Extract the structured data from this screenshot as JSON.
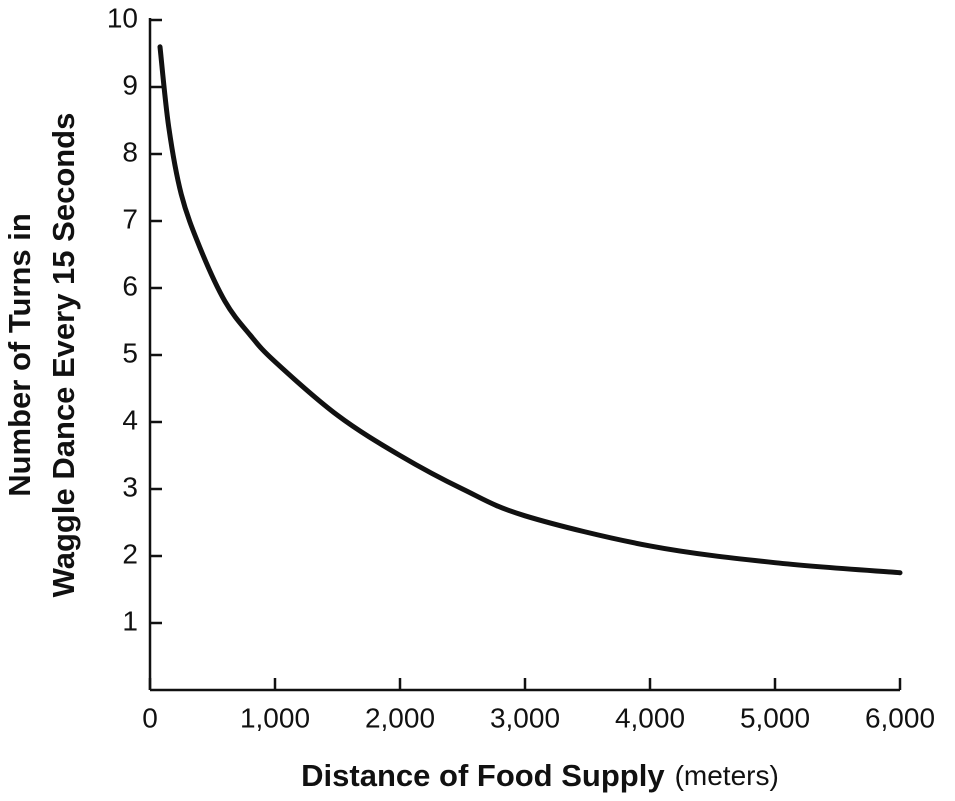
{
  "chart_data": {
    "type": "line",
    "ylabel": [
      "Number of Turns in",
      "Waggle Dance Every 15 Seconds"
    ],
    "xlabel": "Distance of Food Supply",
    "xlabel_unit": "(meters)",
    "x": [
      80,
      150,
      250,
      400,
      600,
      800,
      1000,
      1500,
      2000,
      2500,
      3000,
      4000,
      5000,
      6000
    ],
    "values": [
      9.6,
      8.4,
      7.4,
      6.6,
      5.8,
      5.3,
      4.9,
      4.1,
      3.5,
      3.0,
      2.6,
      2.15,
      1.9,
      1.75
    ],
    "color": "#111111",
    "xlim": [
      0,
      6000
    ],
    "xticks": [
      0,
      {
        "value": 1000,
        "label": "1,000"
      },
      {
        "value": 2000,
        "label": "2,000"
      },
      {
        "value": 3000,
        "label": "3,000"
      },
      {
        "value": 4000,
        "label": "4,000"
      },
      {
        "value": 5000,
        "label": "5,000"
      },
      {
        "value": 6000,
        "label": "6,000"
      }
    ],
    "ylim": [
      0,
      10
    ],
    "yticks": [
      1,
      2,
      3,
      4,
      5,
      6,
      7,
      8,
      9,
      10
    ]
  }
}
